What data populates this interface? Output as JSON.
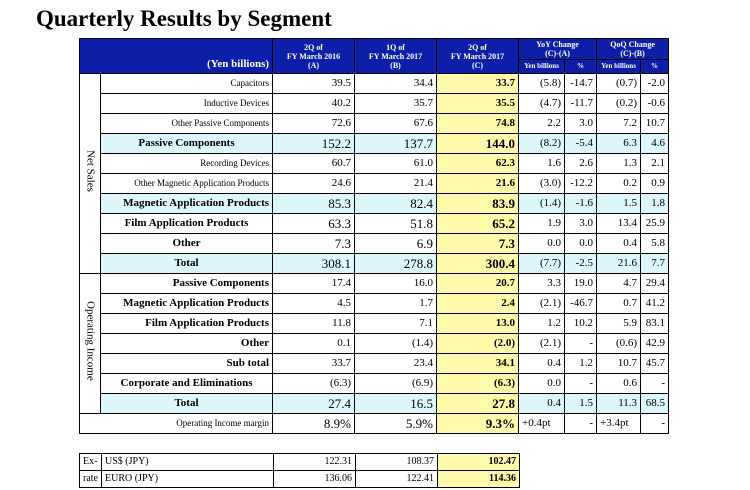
{
  "title": "Quarterly Results by Segment",
  "header": {
    "unit": "(Yen billions)",
    "col_a": [
      "2Q of",
      "FY March 2016",
      "(A)"
    ],
    "col_b": [
      "1Q of",
      "FY March 2017",
      "(B)"
    ],
    "col_c": [
      "2Q of",
      "FY March 2017",
      "(C)"
    ],
    "yoy": [
      "YoY Change",
      "(C)-(A)"
    ],
    "qoq": [
      "QoQ Change",
      "(C)-(B)"
    ],
    "yen_billions": "Yen billions",
    "pct": "%"
  },
  "net_sales_label": "Net Sales",
  "op_income_label": "Operating Income",
  "net_sales_rows": [
    {
      "label": "Capacitors",
      "a": "39.5",
      "b": "34.4",
      "c": "33.7",
      "yoy": "(5.8)",
      "yoyp": "-14.7",
      "qoq": "(0.7)",
      "qoqp": "-2.0"
    },
    {
      "label": "Inductive Devices",
      "a": "40.2",
      "b": "35.7",
      "c": "35.5",
      "yoy": "(4.7)",
      "yoyp": "-11.7",
      "qoq": "(0.2)",
      "qoqp": "-0.6"
    },
    {
      "label": "Other Passive Components",
      "a": "72.6",
      "b": "67.6",
      "c": "74.8",
      "yoy": "2.2",
      "yoyp": "3.0",
      "qoq": "7.2",
      "qoqp": "10.7"
    },
    {
      "label": "Passive Components",
      "a": "152.2",
      "b": "137.7",
      "c": "144.0",
      "yoy": "(8.2)",
      "yoyp": "-5.4",
      "qoq": "6.3",
      "qoqp": "4.6"
    },
    {
      "label": "Recording Devices",
      "a": "60.7",
      "b": "61.0",
      "c": "62.3",
      "yoy": "1.6",
      "yoyp": "2.6",
      "qoq": "1.3",
      "qoqp": "2.1"
    },
    {
      "label": "Other Magnetic Application Products",
      "a": "24.6",
      "b": "21.4",
      "c": "21.6",
      "yoy": "(3.0)",
      "yoyp": "-12.2",
      "qoq": "0.2",
      "qoqp": "0.9"
    },
    {
      "label": "Magnetic Application Products",
      "a": "85.3",
      "b": "82.4",
      "c": "83.9",
      "yoy": "(1.4)",
      "yoyp": "-1.6",
      "qoq": "1.5",
      "qoqp": "1.8"
    },
    {
      "label": "Film Application Products",
      "a": "63.3",
      "b": "51.8",
      "c": "65.2",
      "yoy": "1.9",
      "yoyp": "3.0",
      "qoq": "13.4",
      "qoqp": "25.9"
    },
    {
      "label": "Other",
      "a": "7.3",
      "b": "6.9",
      "c": "7.3",
      "yoy": "0.0",
      "yoyp": "0.0",
      "qoq": "0.4",
      "qoqp": "5.8"
    },
    {
      "label": "Total",
      "a": "308.1",
      "b": "278.8",
      "c": "300.4",
      "yoy": "(7.7)",
      "yoyp": "-2.5",
      "qoq": "21.6",
      "qoqp": "7.7"
    }
  ],
  "op_income_rows": [
    {
      "label": "Passive Components",
      "a": "17.4",
      "b": "16.0",
      "c": "20.7",
      "yoy": "3.3",
      "yoyp": "19.0",
      "qoq": "4.7",
      "qoqp": "29.4"
    },
    {
      "label": "Magnetic Application Products",
      "a": "4.5",
      "b": "1.7",
      "c": "2.4",
      "yoy": "(2.1)",
      "yoyp": "-46.7",
      "qoq": "0.7",
      "qoqp": "41.2"
    },
    {
      "label": "Film Application Products",
      "a": "11.8",
      "b": "7.1",
      "c": "13.0",
      "yoy": "1.2",
      "yoyp": "10.2",
      "qoq": "5.9",
      "qoqp": "83.1"
    },
    {
      "label": "Other",
      "a": "0.1",
      "b": "(1.4)",
      "c": "(2.0)",
      "yoy": "(2.1)",
      "yoyp": "-",
      "qoq": "(0.6)",
      "qoqp": "42.9"
    },
    {
      "label": "Sub total",
      "a": "33.7",
      "b": "23.4",
      "c": "34.1",
      "yoy": "0.4",
      "yoyp": "1.2",
      "qoq": "10.7",
      "qoqp": "45.7"
    },
    {
      "label": "Corporate and Eliminations",
      "a": "(6.3)",
      "b": "(6.9)",
      "c": "(6.3)",
      "yoy": "0.0",
      "yoyp": "-",
      "qoq": "0.6",
      "qoqp": "-"
    },
    {
      "label": "Total",
      "a": "27.4",
      "b": "16.5",
      "c": "27.8",
      "yoy": "0.4",
      "yoyp": "1.5",
      "qoq": "11.3",
      "qoqp": "68.5"
    }
  ],
  "margin_row": {
    "label": "Operating Income margin",
    "a": "8.9%",
    "b": "5.9%",
    "c": "9.3%",
    "yoy": "+0.4pt",
    "yoyp": "-",
    "qoq": "+3.4pt",
    "qoqp": "-"
  },
  "fx": {
    "label_top": "Ex-",
    "label_bottom": "rate",
    "usd": {
      "label": "US$ (JPY)",
      "a": "122.31",
      "b": "108.37",
      "c": "102.47"
    },
    "euro": {
      "label": "EURO (JPY)",
      "a": "136.06",
      "b": "122.41",
      "c": "114.36"
    }
  },
  "colors": {
    "header_bg": "#0d1fa8",
    "highlight": "#fffaaa",
    "subtotal": "#ddf6fb"
  }
}
